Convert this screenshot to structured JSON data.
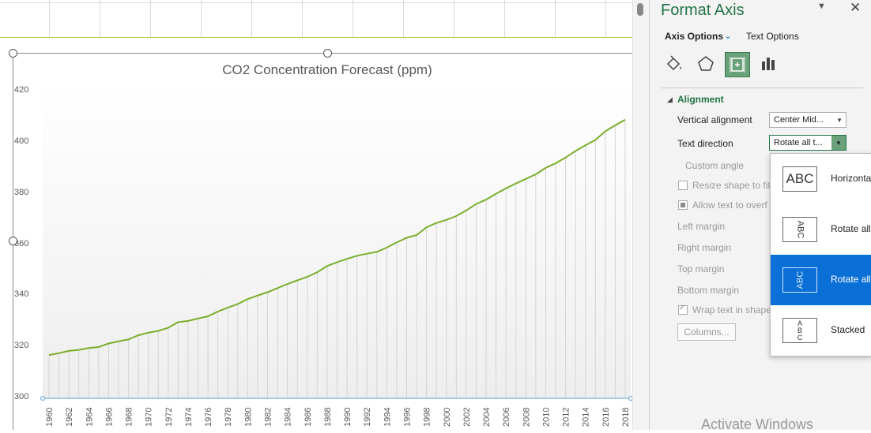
{
  "pane": {
    "title": "Format Axis",
    "tabs": {
      "axis_options": "Axis Options",
      "text_options": "Text Options"
    },
    "section": "Alignment",
    "fields": {
      "vertical_alignment": {
        "label": "Vertical alignment",
        "value": "Center Mid..."
      },
      "text_direction": {
        "label": "Text direction",
        "value": "Rotate all t..."
      },
      "custom_angle": "Custom angle",
      "resize_shape": "Resize shape to fit t",
      "allow_overflow": "Allow text to overf",
      "left_margin": "Left margin",
      "right_margin": "Right margin",
      "top_margin": "Top margin",
      "bottom_margin": "Bottom margin",
      "wrap_text": "Wrap text in shape"
    },
    "columns_button": "Columns...",
    "watermark": "Activate Windows",
    "icons": [
      "fill-line-icon",
      "effects-icon",
      "size-properties-icon",
      "axis-options-icon"
    ]
  },
  "menu": {
    "items": [
      {
        "label": "Horizonta",
        "sample": "ABC",
        "selected": false
      },
      {
        "label": "Rotate all",
        "sample": "ABC",
        "selected": false
      },
      {
        "label": "Rotate all",
        "sample": "ABC",
        "selected": true
      },
      {
        "label": "Stacked",
        "sample": "A B C",
        "selected": false
      }
    ]
  },
  "colors": {
    "line": "#7cae2c",
    "accent": "#217346",
    "selection": "#0a6fd6"
  },
  "chart_data": {
    "type": "line",
    "title": "CO2 Concentration Forecast (ppm)",
    "ylim": [
      300,
      420
    ],
    "yticks": [
      "420",
      "400",
      "380",
      "360",
      "340",
      "320",
      "300"
    ],
    "xtick_labels": [
      "1960",
      "1962",
      "1964",
      "1966",
      "1968",
      "1970",
      "1972",
      "1974",
      "1976",
      "1978",
      "1980",
      "1982",
      "1984",
      "1986",
      "1988",
      "1990",
      "1992",
      "1994",
      "1996",
      "1998",
      "2000",
      "2002",
      "2004",
      "2006",
      "2008",
      "2010",
      "2012",
      "2014",
      "2016",
      "2018"
    ],
    "grid": true,
    "legend": "none",
    "series": [
      {
        "x": [
          1960,
          1961,
          1962,
          1963,
          1964,
          1965,
          1966,
          1967,
          1968,
          1969,
          1970,
          1971,
          1972,
          1973,
          1974,
          1975,
          1976,
          1977,
          1978,
          1979,
          1980,
          1981,
          1982,
          1983,
          1984,
          1985,
          1986,
          1987,
          1988,
          1989,
          1990,
          1991,
          1992,
          1993,
          1994,
          1995,
          1996,
          1997,
          1998,
          1999,
          2000,
          2001,
          2002,
          2003,
          2004,
          2005,
          2006,
          2007,
          2008,
          2009,
          2010,
          2011,
          2012,
          2013,
          2014,
          2015,
          2016,
          2017,
          2018
        ],
        "values": [
          316.9,
          317.6,
          318.5,
          318.9,
          319.6,
          320.0,
          321.4,
          322.2,
          323.0,
          324.6,
          325.6,
          326.3,
          327.5,
          329.7,
          330.2,
          331.1,
          332.0,
          333.8,
          335.4,
          336.8,
          338.7,
          340.1,
          341.4,
          343.0,
          344.6,
          346.0,
          347.4,
          349.2,
          351.6,
          353.1,
          354.4,
          355.6,
          356.4,
          357.1,
          358.8,
          360.8,
          362.6,
          363.7,
          366.7,
          368.4,
          369.6,
          371.1,
          373.3,
          375.8,
          377.5,
          379.8,
          381.9,
          383.8,
          385.6,
          387.4,
          389.9,
          391.7,
          393.9,
          396.5,
          398.7,
          400.8,
          404.2,
          406.5,
          408.7
        ]
      }
    ]
  }
}
